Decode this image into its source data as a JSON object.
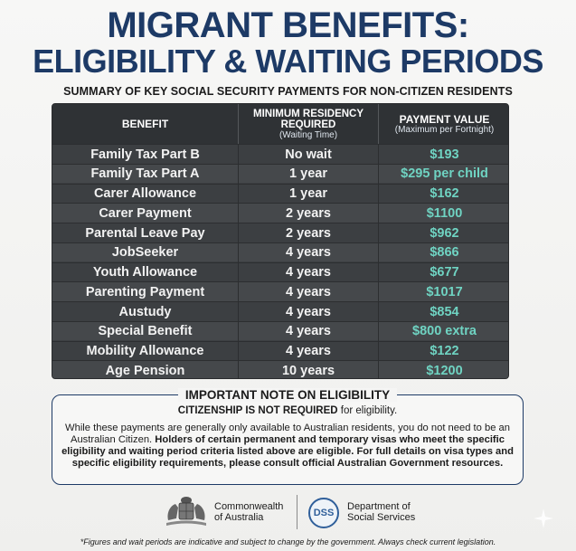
{
  "header": {
    "title_line1": "MIGRANT BENEFITS:",
    "title_line2": "ELIGIBILITY & WAITING PERIODS",
    "subtitle": "SUMMARY OF KEY SOCIAL SECURITY PAYMENTS FOR NON-CITIZEN RESIDENTS"
  },
  "table": {
    "col_benefit": "BENEFIT",
    "col_residency_line1": "MINIMUM RESIDENCY",
    "col_residency_line2": "REQUIRED",
    "col_residency_sub": "(Waiting Time)",
    "col_payment": "PAYMENT VALUE",
    "col_payment_sub": "(Maximum per Fortnight)",
    "rows": [
      {
        "benefit": "Family Tax Part B",
        "wait": "No wait",
        "payment": "$193"
      },
      {
        "benefit": "Family Tax Part A",
        "wait": "1 year",
        "payment": "$295 per child"
      },
      {
        "benefit": "Carer Allowance",
        "wait": "1 year",
        "payment": "$162"
      },
      {
        "benefit": "Carer Payment",
        "wait": "2 years",
        "payment": "$1100"
      },
      {
        "benefit": "Parental Leave Pay",
        "wait": "2 years",
        "payment": "$962"
      },
      {
        "benefit": "JobSeeker",
        "wait": "4 years",
        "payment": "$866"
      },
      {
        "benefit": "Youth Allowance",
        "wait": "4 years",
        "payment": "$677"
      },
      {
        "benefit": "Parenting Payment",
        "wait": "4 years",
        "payment": "$1017"
      },
      {
        "benefit": "Austudy",
        "wait": "4 years",
        "payment": "$854"
      },
      {
        "benefit": "Special Benefit",
        "wait": "4 years",
        "payment": "$800 extra"
      },
      {
        "benefit": "Mobility Allowance",
        "wait": "4 years",
        "payment": "$122"
      },
      {
        "benefit": "Age Pension",
        "wait": "10 years",
        "payment": "$1200"
      }
    ]
  },
  "note": {
    "heading": "IMPORTANT NOTE ON ELIGIBILITY",
    "sub_bold": "CITIZENSHIP IS NOT REQUIRED",
    "sub_rest": " for eligibility.",
    "body_1": "While these payments are generally only available to Australian residents, you do not need to be an Australian Citizen. ",
    "body_2": "Holders of certain permanent and temporary visas who meet the specific eligibility and waiting period criteria listed above are eligible. For full details on visa types and specific eligibility requirements, please consult official Australian Government resources."
  },
  "footer": {
    "cw_line1": "Commonwealth",
    "cw_line2": "of Australia",
    "dss_abbr": "DSS",
    "dss_line1": "Department of",
    "dss_line2": "Social Services",
    "disclaimer": "*Figures and wait periods are indicative and subject to change by the government. Always check current legislation."
  },
  "colors": {
    "title": "#1d3a66",
    "payment_value": "#6fd3c2",
    "table_bg": "#3c3f42",
    "header_bg": "#2f3235"
  }
}
